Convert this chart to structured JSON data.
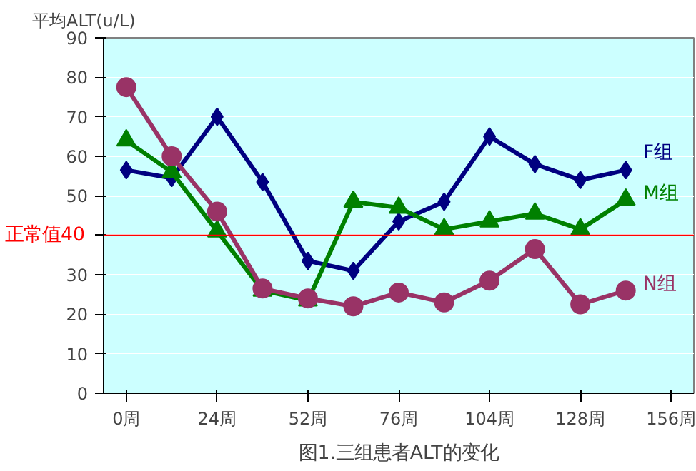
{
  "chart_data": {
    "type": "line",
    "title": "图1.三组患者ALT的变化",
    "ylabel": "平均ALT(u/L)",
    "categories": [
      "0周",
      null,
      "24周",
      null,
      "52周",
      null,
      "76周",
      null,
      "104周",
      null,
      "128周",
      null,
      "156周"
    ],
    "ylim": [
      0,
      90
    ],
    "yticks": [
      0,
      10,
      20,
      30,
      {
        "value": 40,
        "label": null
      },
      50,
      60,
      70,
      80,
      90
    ],
    "grid": "y",
    "legend": false,
    "ref_lines": [
      {
        "axis": "y",
        "value": 40,
        "label": "正常值40",
        "color": "#ff0000"
      }
    ],
    "series": [
      {
        "name": "F组",
        "color": "#000080",
        "marker": "diamond",
        "values": [
          56.5,
          54.5,
          70,
          53.5,
          33.5,
          31,
          43.5,
          48.5,
          65,
          58,
          54,
          56.5,
          null
        ]
      },
      {
        "name": "M组",
        "color": "#008000",
        "marker": "triangle",
        "values": [
          64,
          56,
          41,
          26,
          23.5,
          48.5,
          47,
          41.5,
          43.5,
          45.5,
          41.5,
          49,
          null
        ]
      },
      {
        "name": "N组",
        "color": "#993366",
        "marker": "circle",
        "values": [
          77.5,
          60,
          46,
          26.5,
          24,
          22,
          25.5,
          23,
          28.5,
          36.5,
          22.5,
          26,
          null
        ]
      }
    ]
  }
}
